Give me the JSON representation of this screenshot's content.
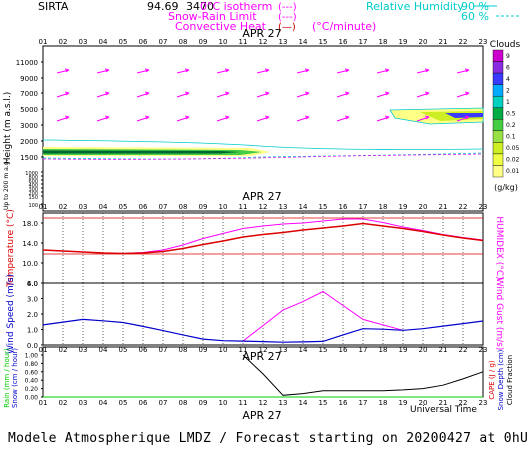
{
  "header": {
    "site": "SIRTA",
    "coords": "94.69",
    "coords_tail": "3470",
    "legend_isotherm": "0°C isotherm",
    "legend_snowrain": "Snow-Rain Limit",
    "legend_convective": "Convective Heat",
    "isotherm_symbol": "(---)",
    "snowrain_symbol": "(---)",
    "convective_symbol": "(—)",
    "convective_unit": "(°C/minute)",
    "rh_label": "Relative Humidity",
    "rh_90": "90 %",
    "rh_60": "60 %"
  },
  "hours": [
    "01",
    "02",
    "03",
    "04",
    "05",
    "06",
    "07",
    "08",
    "09",
    "10",
    "11",
    "12",
    "13",
    "14",
    "15",
    "16",
    "17",
    "18",
    "19",
    "20",
    "21",
    "22",
    "23"
  ],
  "date_label": "APR 27",
  "clouds": {
    "title": "Clouds",
    "unit": "(g/kg)",
    "levels": [
      "9",
      "6",
      "4",
      "2",
      "1",
      "0.5",
      "0.2",
      "0.1",
      "0.05",
      "0.02",
      "0.01"
    ],
    "colors": [
      "#cc00cc",
      "#8a2be2",
      "#3b3bff",
      "#00aaff",
      "#00d0c0",
      "#00aa44",
      "#44cc44",
      "#99e044",
      "#ccee22",
      "#eeff44",
      "#ffff88"
    ]
  },
  "panel1": {
    "ylabel": "Height (m a.s.l.)",
    "ylabel2": "Up to 200 m a.g.l.",
    "ticks": [
      "11000",
      "9000",
      "7000",
      "5000",
      "3000",
      "2000",
      "1500",
      "1000",
      "800",
      "600",
      "400",
      "300",
      "200",
      "150",
      "100"
    ]
  },
  "panel2": {
    "ylabel": "Temperature (°C)",
    "ylabel2": "HUMIDEX (°C)",
    "ticks": [
      "18.0",
      "14.0",
      "10.0",
      "6.0"
    ]
  },
  "panel3": {
    "ylabel": "Wind Speed (m/s)",
    "ylabel2": "Wind Gust (m/s)",
    "ticks": [
      "4.0",
      "3.0",
      "2.0",
      "1.0",
      "0.0"
    ]
  },
  "panel4": {
    "ylabel_rain": "Rain (mm / hour)",
    "ylabel_snow": "Snow (cm / hour)",
    "ylabel_cape": "CAPE (J / g)",
    "ylabel_snowdepth": "Snow Depth (cm)",
    "ylabel_cloud": "Cloud Fraction",
    "ticks": [
      "1.00",
      "0.80",
      "0.60",
      "0.40",
      "0.20",
      "0.00"
    ],
    "xlabel": "Universal Time"
  },
  "footer": "Modele Atmospherique LMDZ / Forecast starting on 20200427 at 0hUT",
  "chart_data": [
    {
      "type": "line",
      "title": "Temperature / HUMIDEX",
      "x": [
        "01",
        "02",
        "03",
        "04",
        "05",
        "06",
        "07",
        "08",
        "09",
        "10",
        "11",
        "12",
        "13",
        "14",
        "15",
        "16",
        "17",
        "18",
        "19",
        "20",
        "21",
        "22",
        "23"
      ],
      "ylim": [
        6.0,
        20.0
      ],
      "series": [
        {
          "name": "Temperature",
          "color": "#dd0000",
          "values": [
            12.6,
            12.4,
            12.2,
            12.0,
            11.9,
            12.0,
            12.3,
            12.9,
            13.7,
            14.4,
            15.2,
            15.7,
            16.1,
            16.6,
            17.0,
            17.4,
            17.9,
            17.4,
            16.9,
            16.3,
            15.6,
            15.0,
            14.5
          ]
        },
        {
          "name": "HUMIDEX",
          "color": "#ff00ff",
          "values": [
            12.6,
            12.4,
            12.2,
            12.0,
            11.9,
            12.1,
            12.6,
            13.6,
            14.9,
            15.9,
            16.9,
            17.4,
            17.8,
            18.0,
            18.4,
            18.8,
            18.8,
            18.1,
            17.2,
            16.5,
            15.7,
            15.1,
            14.6
          ]
        }
      ]
    },
    {
      "type": "line",
      "title": "Wind Speed / Wind Gust",
      "x": [
        "01",
        "02",
        "03",
        "04",
        "05",
        "06",
        "07",
        "08",
        "09",
        "10",
        "11",
        "12",
        "13",
        "14",
        "15",
        "16",
        "17",
        "18",
        "19",
        "20",
        "21",
        "22",
        "23"
      ],
      "ylim": [
        0.0,
        4.0
      ],
      "series": [
        {
          "name": "Wind Speed",
          "color": "#0000cc",
          "values": [
            1.3,
            1.48,
            1.65,
            1.56,
            1.45,
            1.2,
            0.93,
            0.65,
            0.38,
            0.28,
            0.25,
            0.22,
            0.18,
            0.2,
            0.23,
            0.65,
            1.05,
            1.02,
            0.95,
            1.05,
            1.22,
            1.38,
            1.55
          ]
        },
        {
          "name": "Wind Gust",
          "color": "#ff00ff",
          "values": [
            null,
            null,
            null,
            null,
            null,
            null,
            null,
            null,
            null,
            null,
            0.25,
            1.25,
            2.25,
            2.8,
            3.45,
            2.55,
            1.65,
            1.3,
            0.95,
            null,
            null,
            null,
            null
          ]
        }
      ]
    },
    {
      "type": "line",
      "title": "Cloud Fraction",
      "x": [
        "01",
        "02",
        "03",
        "04",
        "05",
        "06",
        "07",
        "08",
        "09",
        "10",
        "11",
        "12",
        "13",
        "14",
        "15",
        "16",
        "17",
        "18",
        "19",
        "20",
        "21",
        "22",
        "23"
      ],
      "ylim": [
        0.0,
        1.0
      ],
      "series": [
        {
          "name": "Cloud Fraction",
          "color": "#000000",
          "values": [
            null,
            null,
            null,
            null,
            null,
            null,
            null,
            null,
            null,
            null,
            1.0,
            0.55,
            0.04,
            0.08,
            0.15,
            0.15,
            0.15,
            0.15,
            0.17,
            0.2,
            0.28,
            0.43,
            0.6
          ]
        },
        {
          "name": "Rain",
          "color": "#00cc00",
          "values": [
            0,
            0,
            0,
            0,
            0,
            0,
            0,
            0,
            0,
            0,
            0,
            0,
            0,
            0,
            0,
            0,
            0,
            0,
            0,
            0,
            0,
            0,
            0
          ]
        }
      ]
    }
  ]
}
